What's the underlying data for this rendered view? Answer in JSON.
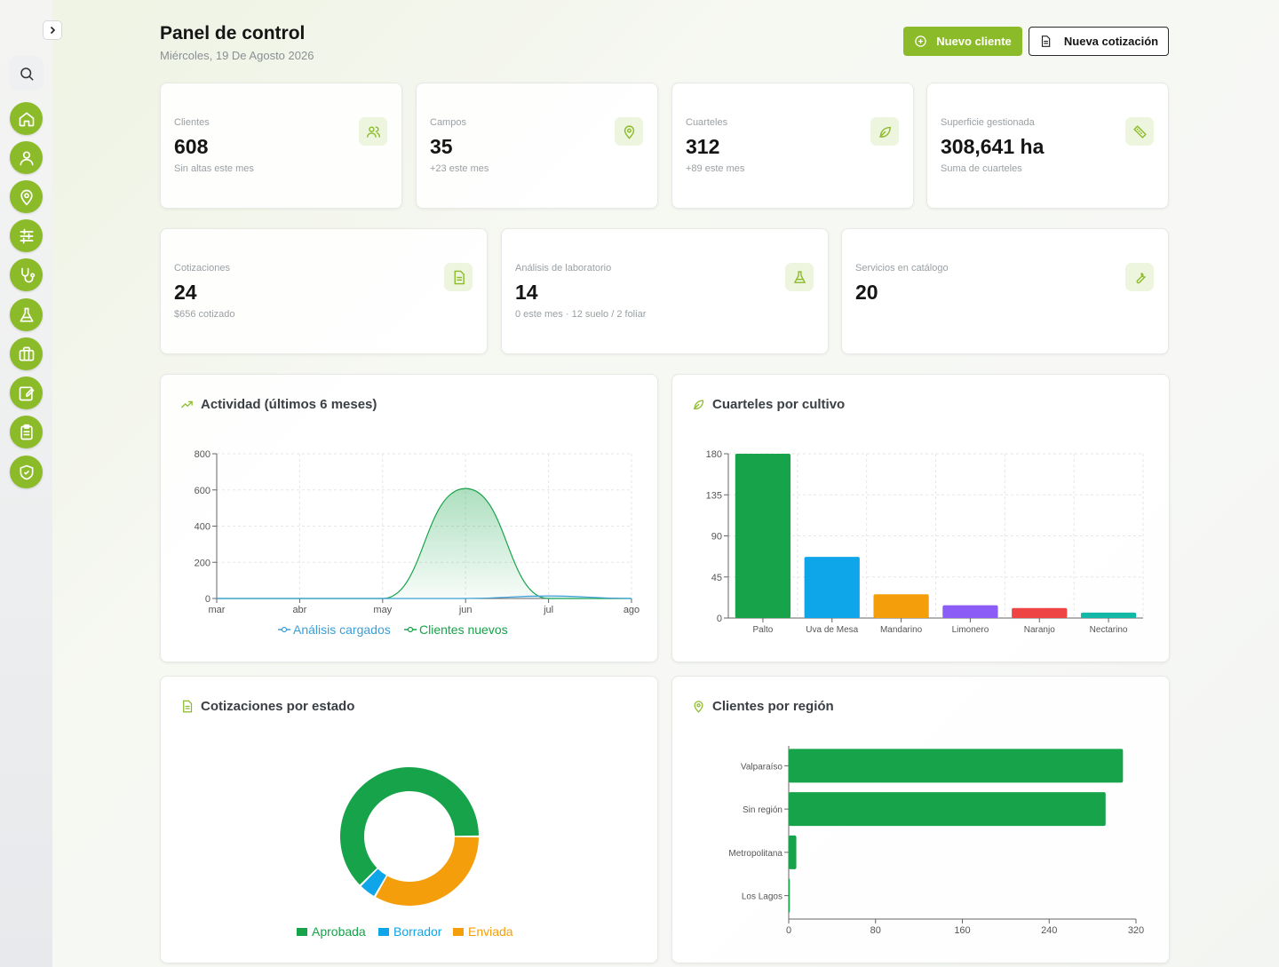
{
  "header": {
    "title": "Panel de control",
    "date": "Miércoles, 19 De Agosto 2026",
    "new_client_label": "Nuevo cliente",
    "new_quote_label": "Nueva cotización"
  },
  "colors": {
    "brand": "#8cbb2a",
    "green": "#16a34a",
    "blue": "#0ea5e9",
    "orange": "#f59e0b",
    "purple": "#8b5cf6",
    "red": "#ef4444",
    "teal": "#14b8a6"
  },
  "sidebar": {
    "items": [
      {
        "icon": "home-icon"
      },
      {
        "icon": "user-icon"
      },
      {
        "icon": "map-pin-icon"
      },
      {
        "icon": "sliders-icon"
      },
      {
        "icon": "stethoscope-icon"
      },
      {
        "icon": "flask-icon"
      },
      {
        "icon": "briefcase-icon"
      },
      {
        "icon": "edit-icon"
      },
      {
        "icon": "clipboard-icon"
      },
      {
        "icon": "shield-check-icon"
      }
    ]
  },
  "stats": [
    {
      "label": "Clientes",
      "value": "608",
      "sub": "Sin altas este mes",
      "icon": "users-icon"
    },
    {
      "label": "Campos",
      "value": "35",
      "sub": "+23 este mes",
      "icon": "map-pin-icon"
    },
    {
      "label": "Cuarteles",
      "value": "312",
      "sub": "+89 este mes",
      "icon": "leaf-icon"
    },
    {
      "label": "Superficie gestionada",
      "value": "308,641 ha",
      "sub": "Suma de cuarteles",
      "icon": "ruler-icon"
    },
    {
      "label": "Cotizaciones",
      "value": "24",
      "sub": "$656 cotizado",
      "icon": "document-icon"
    },
    {
      "label": "Análisis de laboratorio",
      "value": "14",
      "sub": "0 este mes · 12 suelo / 2 foliar",
      "icon": "flask-icon"
    },
    {
      "label": "Servicios en catálogo",
      "value": "20",
      "sub": "",
      "icon": "wrench-icon"
    }
  ],
  "panels": {
    "activity_title": "Actividad (últimos 6 meses)",
    "crops_title": "Cuarteles por cultivo",
    "quotes_title": "Cotizaciones por estado",
    "regions_title": "Clientes por región"
  },
  "chart_data": [
    {
      "type": "area",
      "categories": [
        "mar",
        "abr",
        "may",
        "jun",
        "jul",
        "ago"
      ],
      "ylim": [
        0,
        800
      ],
      "yticks": [
        0,
        200,
        400,
        600,
        800
      ],
      "grid": true,
      "legend_position": "bottom",
      "series": [
        {
          "name": "Análisis cargados",
          "values": [
            0,
            0,
            0,
            0,
            14,
            0
          ],
          "color": "#3b9ed6"
        },
        {
          "name": "Clientes nuevos",
          "values": [
            0,
            0,
            0,
            608,
            0,
            0
          ],
          "color": "#16a34a"
        }
      ]
    },
    {
      "type": "bar",
      "categories": [
        "Palto",
        "Uva de Mesa",
        "Mandarino",
        "Limonero",
        "Naranjo",
        "Nectarino"
      ],
      "values": [
        180,
        67,
        26,
        14,
        11,
        6
      ],
      "colors": [
        "#16a34a",
        "#0ea5e9",
        "#f59e0b",
        "#8b5cf6",
        "#ef4444",
        "#14b8a6"
      ],
      "ylim": [
        0,
        180
      ],
      "yticks": [
        0,
        45,
        90,
        135,
        180
      ],
      "grid": true
    },
    {
      "type": "pie",
      "categories": [
        "Aprobada",
        "Borrador",
        "Enviada"
      ],
      "values": [
        15,
        1,
        8
      ],
      "colors": [
        "#16a34a",
        "#0ea5e9",
        "#f59e0b"
      ],
      "legend_position": "bottom"
    },
    {
      "type": "bar",
      "orientation": "horizontal",
      "categories": [
        "Valparaíso",
        "Sin región",
        "Metropolitana",
        "Los Lagos"
      ],
      "values": [
        308,
        292,
        7,
        1
      ],
      "color": "#16a34a",
      "xlim": [
        0,
        320
      ],
      "xticks": [
        0,
        80,
        160,
        240,
        320
      ]
    }
  ]
}
